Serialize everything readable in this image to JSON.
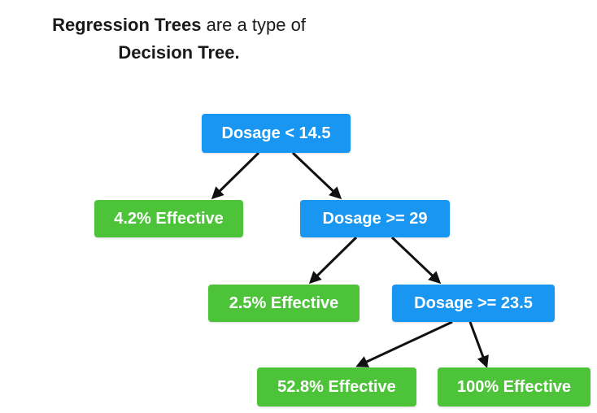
{
  "title": {
    "part1_bold": "Regression Trees",
    "part1_rest": " are a type of",
    "part2_bold": "Decision Tree."
  },
  "colors": {
    "decision_node": "#1896f2",
    "leaf_node": "#4dc33a",
    "edge": "#111111"
  },
  "tree": {
    "root": "Dosage < 14.5",
    "root_left_leaf": "4.2% Effective",
    "node2": "Dosage >= 29",
    "node2_left_leaf": "2.5% Effective",
    "node3": "Dosage >= 23.5",
    "node3_left_leaf": "52.8% Effective",
    "node3_right_leaf": "100% Effective"
  }
}
